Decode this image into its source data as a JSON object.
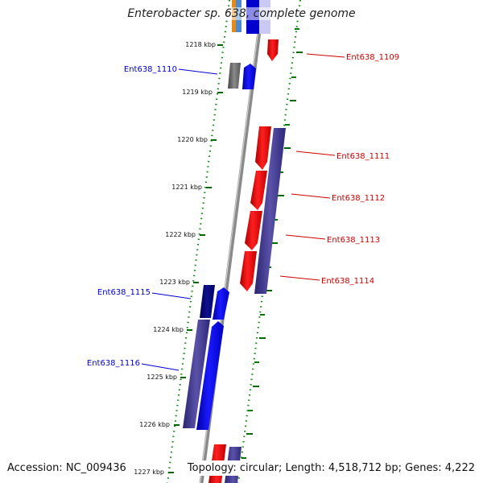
{
  "title": "Enterobacter sp. 638, complete genome",
  "accession_text": "Accession: NC_009436",
  "info_text": "Topology: circular; Length: 4,518,712 bp; Genes: 4,222",
  "ticks": [
    "1218 kbp",
    "1219 kbp",
    "1220 kbp",
    "1221 kbp",
    "1222 kbp",
    "1223 kbp",
    "1224 kbp",
    "1225 kbp",
    "1226 kbp",
    "1227 kbp"
  ],
  "labels_right": [
    "Ent638_1109",
    "Ent638_1111",
    "Ent638_1112",
    "Ent638_1113",
    "Ent638_1114"
  ],
  "labels_left": [
    "Ent638_1110",
    "Ent638_1115",
    "Ent638_1116"
  ],
  "colors": {
    "forward_gene": "#ee0000",
    "reverse_gene": "#0000ee",
    "cds_purple": "#3e3888",
    "backbone": "#8a8a8a",
    "grid_dots": "#118811",
    "tick_marks": "#006600",
    "label_forward": "#cc0000",
    "label_reverse": "#0000cc"
  }
}
